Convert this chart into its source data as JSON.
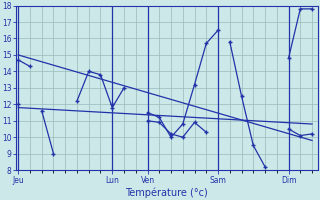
{
  "xlabel": "Température (°c)",
  "ylim": [
    8,
    18
  ],
  "yticks": [
    8,
    9,
    10,
    11,
    12,
    13,
    14,
    15,
    16,
    17,
    18
  ],
  "bg_color": "#cce8e8",
  "line_color": "#2233aa",
  "grid_color": "#99bbbb",
  "day_labels": [
    "Jeu",
    "Lun",
    "Ven",
    "Sam",
    "Dim"
  ],
  "day_tick_positions": [
    0,
    8,
    11,
    17,
    23
  ],
  "xlim": [
    -0.2,
    25.5
  ],
  "series1_segments": [
    {
      "x": [
        0,
        1
      ],
      "y": [
        14.7,
        14.3
      ]
    },
    {
      "x": [
        8
      ],
      "y": [
        12.0
      ]
    },
    {
      "x": [
        11,
        12,
        13,
        14,
        15,
        16
      ],
      "y": [
        11.0,
        10.9,
        10.2,
        10.0,
        10.9,
        10.3
      ]
    },
    {
      "x": [
        23,
        24,
        25
      ],
      "y": [
        10.5,
        10.1,
        10.2
      ]
    }
  ],
  "series2_segments": [
    {
      "x": [
        0
      ],
      "y": [
        12.0
      ]
    },
    {
      "x": [
        2,
        3
      ],
      "y": [
        11.6,
        9.0
      ]
    },
    {
      "x": [
        5,
        6,
        7,
        8,
        9
      ],
      "y": [
        12.2,
        14.0,
        13.8,
        11.8,
        13.0
      ]
    },
    {
      "x": [
        11,
        12,
        13,
        14,
        15,
        16,
        17
      ],
      "y": [
        11.5,
        11.2,
        10.0,
        10.8,
        13.2,
        15.7,
        16.5
      ]
    },
    {
      "x": [
        18,
        19,
        20,
        21
      ],
      "y": [
        15.8,
        12.5,
        9.5,
        8.2
      ]
    },
    {
      "x": [
        23,
        24,
        25
      ],
      "y": [
        14.8,
        17.8,
        17.8
      ]
    }
  ],
  "trend1": {
    "x": [
      0,
      25
    ],
    "y": [
      15.0,
      9.8
    ]
  },
  "trend2": {
    "x": [
      0,
      25
    ],
    "y": [
      11.8,
      10.8
    ]
  }
}
